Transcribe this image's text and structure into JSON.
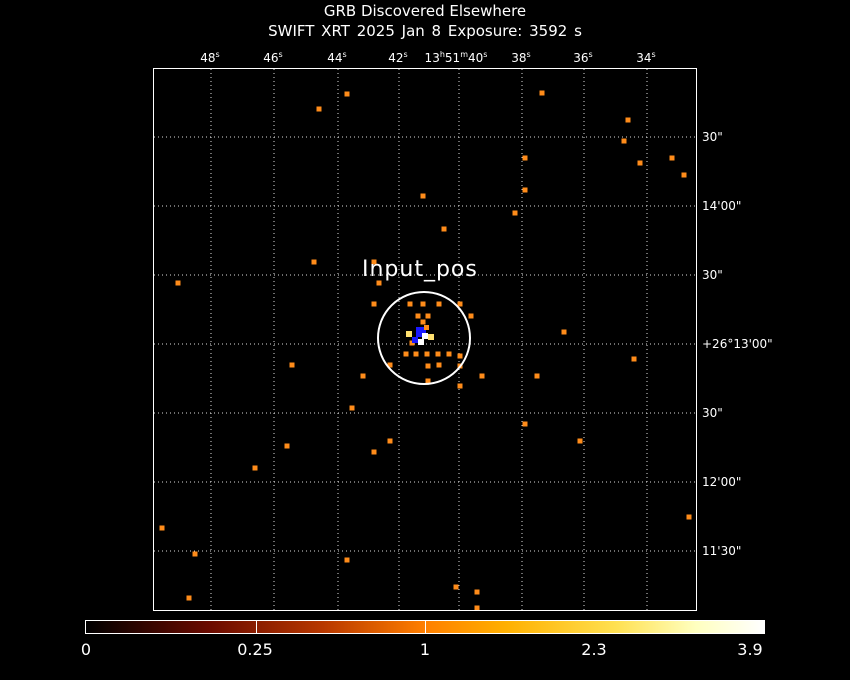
{
  "title": "GRB Discovered Elsewhere",
  "subtitle": "SWIFT XRT   2025 Jan  8    Exposure: 3592 s",
  "ra_labels": [
    "48s",
    "46s",
    "44s",
    "42s",
    "13h51m40s",
    "38s",
    "36s",
    "34s"
  ],
  "dec_labels": [
    "30\"",
    "14'00\"",
    "30\"",
    "+26°13'00\"",
    "30\"",
    "12'00\"",
    "11'30\""
  ],
  "source_label": "Input_pos",
  "colorbar": {
    "labels": [
      "0",
      "0.25",
      "1",
      "2.3",
      "3.9"
    ]
  },
  "colors": {
    "photon": "#ff8c1a",
    "bright": "#ffe070",
    "peak": "#ffffff",
    "core": "#1a1aff"
  }
}
